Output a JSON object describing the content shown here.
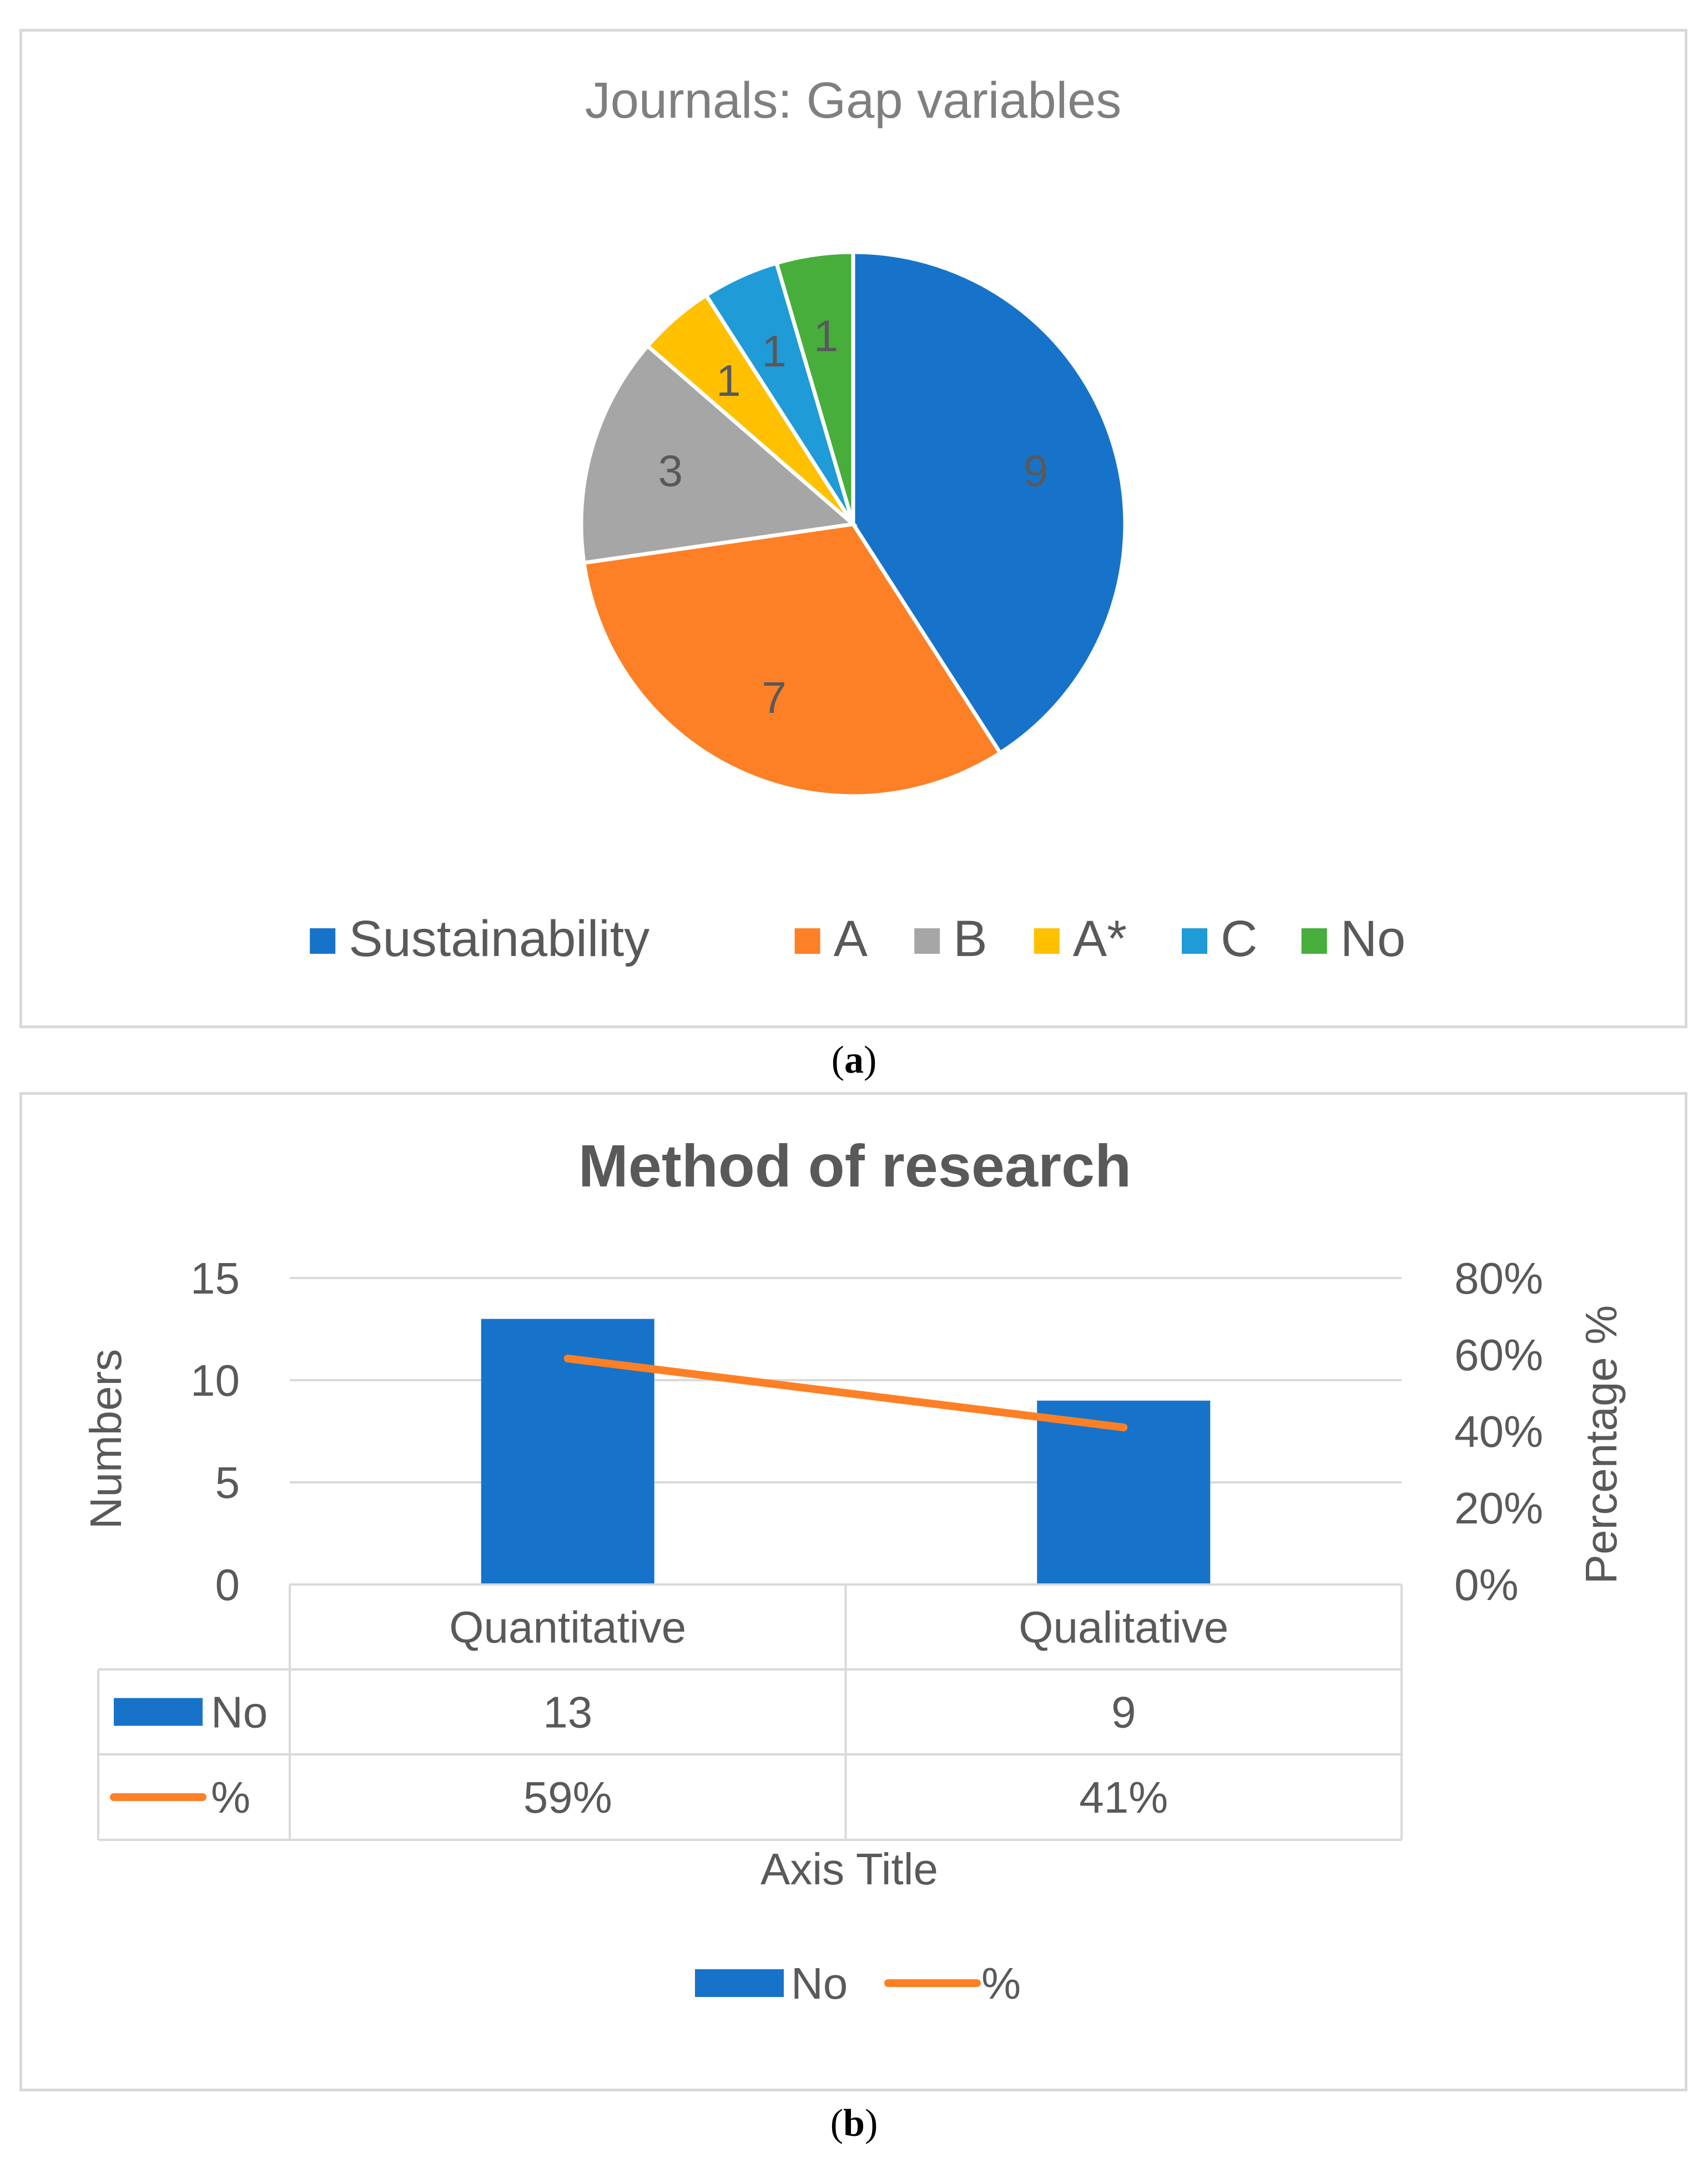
{
  "chart_data": [
    {
      "type": "pie",
      "title": "Journals: Gap variables",
      "categories": [
        "Sustainability",
        "A",
        "B",
        "A*",
        "C",
        "No"
      ],
      "values": [
        9,
        7,
        3,
        1,
        1,
        1
      ],
      "colors": [
        "#1773c9",
        "#fd8026",
        "#a6a6a6",
        "#ffc000",
        "#1f9bd8",
        "#47ae3c"
      ],
      "legend_position": "bottom",
      "data_labels": true
    },
    {
      "type": "bar",
      "title": "Method of research",
      "categories": [
        "Quantitative",
        "Qualitative"
      ],
      "series": [
        {
          "name": "No",
          "kind": "bar",
          "axis": "left",
          "values": [
            13,
            9
          ],
          "labels": [
            "13",
            "9"
          ],
          "color": "#1773c9"
        },
        {
          "name": "%",
          "kind": "line",
          "axis": "right",
          "values": [
            59,
            41
          ],
          "labels": [
            "59%",
            "41%"
          ],
          "color": "#fd8026"
        }
      ],
      "ylabel": "Numbers",
      "ylim": [
        0,
        15
      ],
      "yticks": [
        "0",
        "5",
        "10",
        "15"
      ],
      "y2label": "Percentage %",
      "y2lim": [
        0,
        80
      ],
      "y2ticks": [
        "0%",
        "20%",
        "40%",
        "60%",
        "80%"
      ],
      "xlabel": "Axis Title",
      "data_table": true,
      "legend_position": "bottom",
      "grid": true
    }
  ],
  "captions": {
    "a": "a",
    "b": "b"
  }
}
